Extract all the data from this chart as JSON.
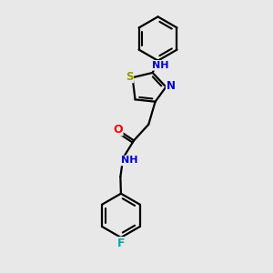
{
  "bg_color": "#e8e8e8",
  "bond_color": "#000000",
  "atom_colors": {
    "N": "#0000cc",
    "O": "#ff0000",
    "S": "#999900",
    "F": "#00aaaa",
    "H": "#000000",
    "C": "#000000"
  }
}
